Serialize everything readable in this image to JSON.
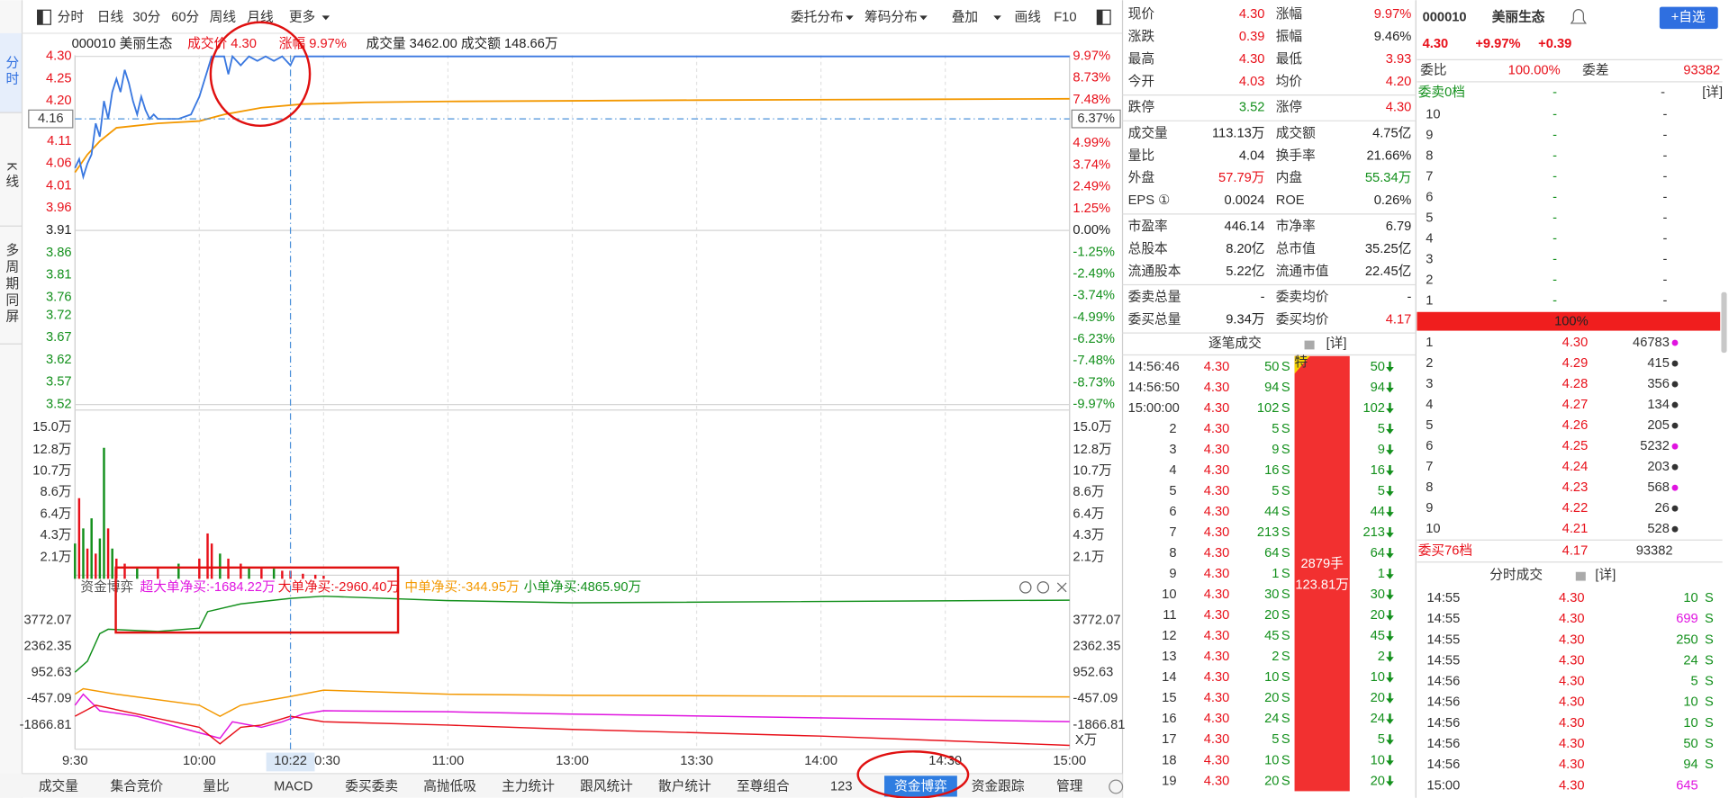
{
  "sidebar": {
    "tabs": [
      "分时",
      "K线",
      "多周期同屏"
    ],
    "active": "分时"
  },
  "toolbar": {
    "left": [
      "分时",
      "日线",
      "30分",
      "60分",
      "周线",
      "月线",
      "更多"
    ],
    "right": [
      "委托分布",
      "筹码分布",
      "叠加",
      "画线",
      "F10"
    ]
  },
  "info": [
    {
      "text": "000010 美丽生态",
      "color": "black"
    },
    {
      "text": "成交价 4.30",
      "color": "red"
    },
    {
      "text": "涨幅 9.97%",
      "color": "red"
    },
    {
      "text": "成交量 3462.00",
      "color": "black"
    },
    {
      "text": "成交额 148.66万",
      "color": "black"
    }
  ],
  "chart": {
    "type": "line",
    "yticks": [
      "4.30",
      "4.25",
      "4.20",
      "4.11",
      "4.06",
      "4.01",
      "3.96",
      "3.91",
      "3.86",
      "3.81",
      "3.76",
      "3.72",
      "3.67",
      "3.62",
      "3.57",
      "3.52"
    ],
    "pct_ticks": [
      "9.97%",
      "8.73%",
      "7.48%",
      "4.99%",
      "3.74%",
      "2.49%",
      "1.25%",
      "0.00%",
      "-1.25%",
      "-2.49%",
      "-3.74%",
      "-4.99%",
      "-6.23%",
      "-7.48%",
      "-8.73%",
      "-9.97%"
    ],
    "xticks": [
      "9:30",
      "10:00",
      "10:30",
      "11:00",
      "13:00",
      "13:30",
      "14:00",
      "14:30",
      "15:00"
    ],
    "cursor": {
      "time": "10:22",
      "price": "4.16",
      "pct": "6.37%"
    },
    "price": {
      "color": "#3a78e0",
      "x": [
        "9:30",
        "9:31",
        "9:32",
        "9:33",
        "9:34",
        "9:35",
        "9:36",
        "9:37",
        "9:38",
        "9:39",
        "9:40",
        "9:41",
        "9:42",
        "9:43",
        "9:44",
        "9:45",
        "9:46",
        "9:47",
        "9:48",
        "9:49",
        "9:50",
        "9:55",
        "9:58",
        "10:00",
        "10:02",
        "10:03",
        "10:06",
        "10:07",
        "10:08",
        "10:10",
        "10:12",
        "10:14",
        "10:16",
        "10:18",
        "10:20",
        "10:22",
        "10:23",
        "15:00"
      ],
      "values": [
        4.05,
        4.07,
        4.03,
        4.06,
        4.08,
        4.15,
        4.12,
        4.2,
        4.16,
        4.22,
        4.25,
        4.22,
        4.27,
        4.24,
        4.2,
        4.17,
        4.21,
        4.18,
        4.16,
        4.17,
        4.16,
        4.16,
        4.17,
        4.21,
        4.27,
        4.3,
        4.3,
        4.26,
        4.3,
        4.28,
        4.3,
        4.29,
        4.3,
        4.29,
        4.3,
        4.28,
        4.3,
        4.3
      ]
    },
    "average": {
      "color": "#f39800",
      "x": [
        "9:30",
        "9:33",
        "9:36",
        "9:40",
        "9:50",
        "10:00",
        "10:06",
        "10:15",
        "10:25",
        "10:40",
        "11:00",
        "13:30",
        "15:00"
      ],
      "values": [
        4.04,
        4.08,
        4.11,
        4.14,
        4.15,
        4.155,
        4.17,
        4.185,
        4.193,
        4.197,
        4.199,
        4.202,
        4.205
      ]
    },
    "volume": {
      "yticks": [
        "15.0万",
        "12.8万",
        "10.7万",
        "8.6万",
        "6.4万",
        "4.3万",
        "2.1万"
      ],
      "x": [
        "9:30",
        "9:31",
        "9:32",
        "9:33",
        "9:34",
        "9:35",
        "9:36",
        "9:37",
        "9:38",
        "9:39",
        "9:40",
        "9:42",
        "9:45",
        "9:50",
        "9:55",
        "10:00",
        "10:02",
        "10:03",
        "10:05",
        "10:07",
        "10:10",
        "10:12",
        "10:15",
        "10:18",
        "10:20",
        "10:22",
        "10:25",
        "10:28",
        "10:30"
      ],
      "values": [
        3.5,
        8.0,
        5.0,
        3.0,
        6.0,
        2.5,
        4.0,
        13.0,
        5.0,
        3.0,
        2.0,
        1.5,
        1.2,
        1.0,
        1.5,
        2.0,
        4.5,
        3.5,
        2.5,
        2.0,
        1.5,
        1.2,
        1.0,
        1.0,
        0.8,
        0.8,
        0.5,
        0.4,
        0.3
      ],
      "colors": [
        "green",
        "red",
        "green",
        "red",
        "green",
        "red",
        "green",
        "green",
        "red",
        "green",
        "red",
        "red",
        "green",
        "red",
        "green",
        "red",
        "red",
        "red",
        "green",
        "red",
        "red",
        "green",
        "red",
        "green",
        "red",
        "red",
        "red",
        "red",
        "red"
      ]
    },
    "fund": {
      "title": "资金博弈",
      "legend": [
        "超大单净买:-1684.22万",
        "大单净买:-2960.40万",
        "中单净买:-344.95万",
        "小单净买:4865.90万"
      ],
      "yticks": [
        "3772.07",
        "2362.35",
        "952.63",
        "-457.09",
        "-1866.81"
      ],
      "unit": "X万",
      "series": [
        {
          "color": "magenta",
          "x": [
            "9:30",
            "9:32",
            "9:36",
            "9:45",
            "10:00",
            "10:05",
            "10:08",
            "10:15",
            "10:20",
            "10:25",
            "10:30",
            "11:00",
            "13:00",
            "15:00"
          ],
          "values": [
            -797,
            -205,
            -1094,
            -1391,
            -2281,
            -2578,
            -1688,
            -1985,
            -1688,
            -1272,
            -1094,
            -1150,
            -1272,
            -1684.22
          ]
        },
        {
          "color": "red",
          "x": [
            "9:30",
            "9:35",
            "9:45",
            "10:00",
            "10:05",
            "10:10",
            "10:15",
            "10:22",
            "10:30",
            "11:00",
            "13:00",
            "14:00",
            "15:00"
          ],
          "values": [
            -1391,
            -797,
            -1272,
            -1985,
            -2875,
            -1985,
            -1866,
            -1391,
            -1688,
            -1866,
            -2100,
            -2460,
            -2960.4
          ]
        },
        {
          "color": "orange",
          "x": [
            "9:30",
            "9:32",
            "9:40",
            "10:00",
            "10:05",
            "10:10",
            "10:22",
            "10:30",
            "11:00",
            "13:00",
            "15:00"
          ],
          "values": [
            -204,
            92,
            -204,
            -797,
            -1391,
            -797,
            -323,
            14,
            -204,
            -264,
            -344.95
          ]
        },
        {
          "color": "green",
          "x": [
            "9:30",
            "9:33",
            "9:36",
            "9:38",
            "9:50",
            "10:00",
            "10:02",
            "10:10",
            "10:22",
            "10:30",
            "11:00",
            "13:00",
            "15:00"
          ],
          "values": [
            983,
            1576,
            3060,
            3297,
            3178,
            3356,
            4247,
            4662,
            4959,
            5078,
            4840,
            4722,
            4865.9
          ]
        }
      ]
    }
  },
  "bottom_tabs": {
    "tabs": [
      "成交量",
      "集合竞价",
      "量比",
      "MACD",
      "委买委卖",
      "高抛低吸",
      "主力统计",
      "跟风统计",
      "散户统计",
      "至尊组合",
      "123",
      "资金博弈",
      "资金跟踪",
      "管理"
    ],
    "active": "资金博弈"
  },
  "quote": {
    "groups": [
      [
        [
          "现价",
          "4.30",
          "red",
          "涨幅",
          "9.97%",
          "red"
        ],
        [
          "涨跌",
          "0.39",
          "red",
          "振幅",
          "9.46%",
          "black"
        ],
        [
          "最高",
          "4.30",
          "red",
          "最低",
          "3.93",
          "red"
        ],
        [
          "今开",
          "4.03",
          "red",
          "均价",
          "4.20",
          "red"
        ]
      ],
      [
        [
          "跌停",
          "3.52",
          "green",
          "涨停",
          "4.30",
          "red"
        ]
      ],
      [
        [
          "成交量",
          "113.13万",
          "black",
          "成交额",
          "4.75亿",
          "black"
        ],
        [
          "量比",
          "4.04",
          "black",
          "换手率",
          "21.66%",
          "black"
        ],
        [
          "外盘",
          "57.79万",
          "red",
          "内盘",
          "55.34万",
          "green"
        ],
        [
          "EPS ①",
          "0.0024",
          "black",
          "ROE",
          "0.26%",
          "black"
        ]
      ],
      [
        [
          "市盈率",
          "446.14",
          "black",
          "市净率",
          "6.79",
          "black"
        ],
        [
          "总股本",
          "8.20亿",
          "black",
          "总市值",
          "35.25亿",
          "black"
        ],
        [
          "流通股本",
          "5.22亿",
          "black",
          "流通市值",
          "22.45亿",
          "black"
        ]
      ],
      [
        [
          "委卖总量",
          "-",
          "black",
          "委卖均价",
          "-",
          "black"
        ],
        [
          "委买总量",
          "9.34万",
          "black",
          "委买均价",
          "4.17",
          "red"
        ]
      ]
    ]
  },
  "tick_trades": {
    "title": "逐笔成交",
    "detail": "[详]",
    "bar": {
      "badge": "特",
      "lots": "2879手",
      "amount": "123.81万"
    },
    "rows": [
      [
        "14:56:46",
        "4.30",
        "50",
        "S",
        "50"
      ],
      [
        "14:56:50",
        "4.30",
        "94",
        "S",
        "94"
      ],
      [
        "15:00:00",
        "4.30",
        "102",
        "S",
        "102"
      ],
      [
        "2",
        "4.30",
        "5",
        "S",
        "5"
      ],
      [
        "3",
        "4.30",
        "9",
        "S",
        "9"
      ],
      [
        "4",
        "4.30",
        "16",
        "S",
        "16"
      ],
      [
        "5",
        "4.30",
        "5",
        "S",
        "5"
      ],
      [
        "6",
        "4.30",
        "44",
        "S",
        "44"
      ],
      [
        "7",
        "4.30",
        "213",
        "S",
        "213"
      ],
      [
        "8",
        "4.30",
        "64",
        "S",
        "64"
      ],
      [
        "9",
        "4.30",
        "1",
        "S",
        "1"
      ],
      [
        "10",
        "4.30",
        "30",
        "S",
        "30"
      ],
      [
        "11",
        "4.30",
        "20",
        "S",
        "20"
      ],
      [
        "12",
        "4.30",
        "45",
        "S",
        "45"
      ],
      [
        "13",
        "4.30",
        "2",
        "S",
        "2"
      ],
      [
        "14",
        "4.30",
        "10",
        "S",
        "10"
      ],
      [
        "15",
        "4.30",
        "20",
        "S",
        "20"
      ],
      [
        "16",
        "4.30",
        "24",
        "S",
        "24"
      ],
      [
        "17",
        "4.30",
        "5",
        "S",
        "5"
      ],
      [
        "18",
        "4.30",
        "10",
        "S",
        "10"
      ],
      [
        "19",
        "4.30",
        "20",
        "S",
        "20"
      ]
    ]
  },
  "book": {
    "code": "000010",
    "name": "美丽生态",
    "add": "+自选",
    "price": "4.30",
    "pct": "+9.97%",
    "chg": "+0.39",
    "ratio_label": "委比",
    "ratio": "100.00%",
    "diff_label": "委差",
    "diff": "93382",
    "sell_head": [
      "委卖0档",
      "-",
      "-",
      "[详]"
    ],
    "sell": [
      [
        "10",
        "-",
        "-"
      ],
      [
        "9",
        "-",
        "-"
      ],
      [
        "8",
        "-",
        "-"
      ],
      [
        "7",
        "-",
        "-"
      ],
      [
        "6",
        "-",
        "-"
      ],
      [
        "5",
        "-",
        "-"
      ],
      [
        "4",
        "-",
        "-"
      ],
      [
        "3",
        "-",
        "-"
      ],
      [
        "2",
        "-",
        "-"
      ],
      [
        "1",
        "-",
        "-"
      ]
    ],
    "bar": "100%",
    "buy": [
      [
        "1",
        "4.30",
        "46783",
        "magenta"
      ],
      [
        "2",
        "4.29",
        "415",
        "dark"
      ],
      [
        "3",
        "4.28",
        "356",
        "dark"
      ],
      [
        "4",
        "4.27",
        "134",
        "dark"
      ],
      [
        "5",
        "4.26",
        "205",
        "dark"
      ],
      [
        "6",
        "4.25",
        "5232",
        "magenta"
      ],
      [
        "7",
        "4.24",
        "203",
        "dark"
      ],
      [
        "8",
        "4.23",
        "568",
        "magenta"
      ],
      [
        "9",
        "4.22",
        "26",
        "dark"
      ],
      [
        "10",
        "4.21",
        "528",
        "dark"
      ]
    ],
    "buy_foot": [
      "委买76档",
      "4.17",
      "93382"
    ],
    "trades_title": "分时成交",
    "trades_detail": "[详]",
    "trades": [
      [
        "14:55",
        "4.30",
        "10",
        "green",
        "S"
      ],
      [
        "14:55",
        "4.30",
        "699",
        "magenta",
        "S"
      ],
      [
        "14:55",
        "4.30",
        "250",
        "green",
        "S"
      ],
      [
        "14:55",
        "4.30",
        "24",
        "green",
        "S"
      ],
      [
        "14:56",
        "4.30",
        "5",
        "green",
        "S"
      ],
      [
        "14:56",
        "4.30",
        "10",
        "green",
        "S"
      ],
      [
        "14:56",
        "4.30",
        "10",
        "green",
        "S"
      ],
      [
        "14:56",
        "4.30",
        "50",
        "green",
        "S"
      ],
      [
        "14:56",
        "4.30",
        "94",
        "green",
        "S"
      ],
      [
        "15:00",
        "4.30",
        "645",
        "magenta"
      ]
    ]
  }
}
